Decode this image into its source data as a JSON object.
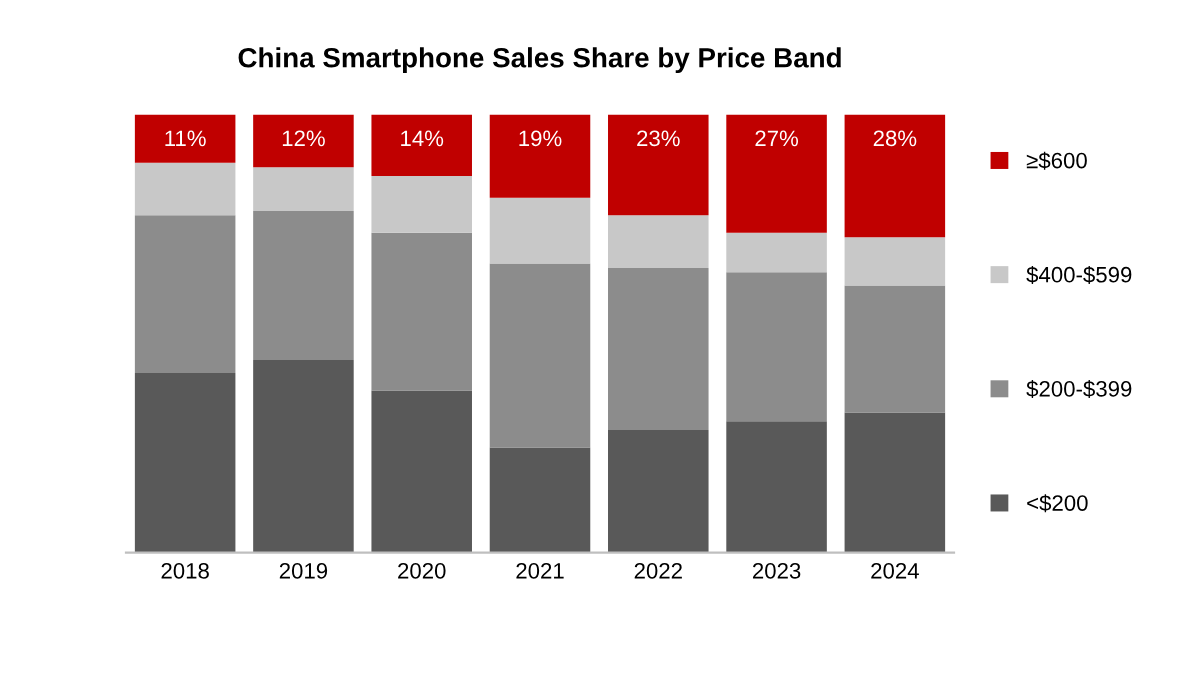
{
  "chart_data": {
    "type": "bar",
    "title": "China Smartphone Sales Share by Price Band",
    "categories": [
      "2018",
      "2019",
      "2020",
      "2021",
      "2022",
      "2023",
      "2024"
    ],
    "stacked": true,
    "legend": "right",
    "grid": false,
    "series": [
      {
        "name": "<$200",
        "color": "#595959",
        "values": [
          41,
          44,
          37,
          24,
          28,
          30,
          32
        ]
      },
      {
        "name": "$200-$399",
        "color": "#8c8c8c",
        "values": [
          36,
          34,
          36,
          42,
          37,
          34,
          29
        ]
      },
      {
        "name": "$400-$599",
        "color": "#c8c8c8",
        "values": [
          12,
          10,
          13,
          15,
          12,
          9,
          11
        ]
      },
      {
        "name": "≥$600",
        "color": "#c00000",
        "values": [
          11,
          12,
          14,
          19,
          23,
          27,
          28
        ],
        "value_labels": [
          "11%",
          "12%",
          "14%",
          "19%",
          "23%",
          "27%",
          "28%"
        ]
      }
    ]
  }
}
